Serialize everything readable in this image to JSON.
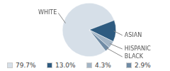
{
  "chart_data": {
    "type": "pie",
    "categories": [
      "WHITE",
      "ASIAN",
      "HISPANIC",
      "BLACK"
    ],
    "values": [
      79.7,
      13.0,
      4.3,
      2.9
    ],
    "value_labels": [
      "79.7%",
      "13.0%",
      "4.3%",
      "2.9%"
    ],
    "colors": [
      "#d6dfe8",
      "#2e5b80",
      "#a3b5c6",
      "#6f8ba5"
    ],
    "legend": "bottom"
  }
}
